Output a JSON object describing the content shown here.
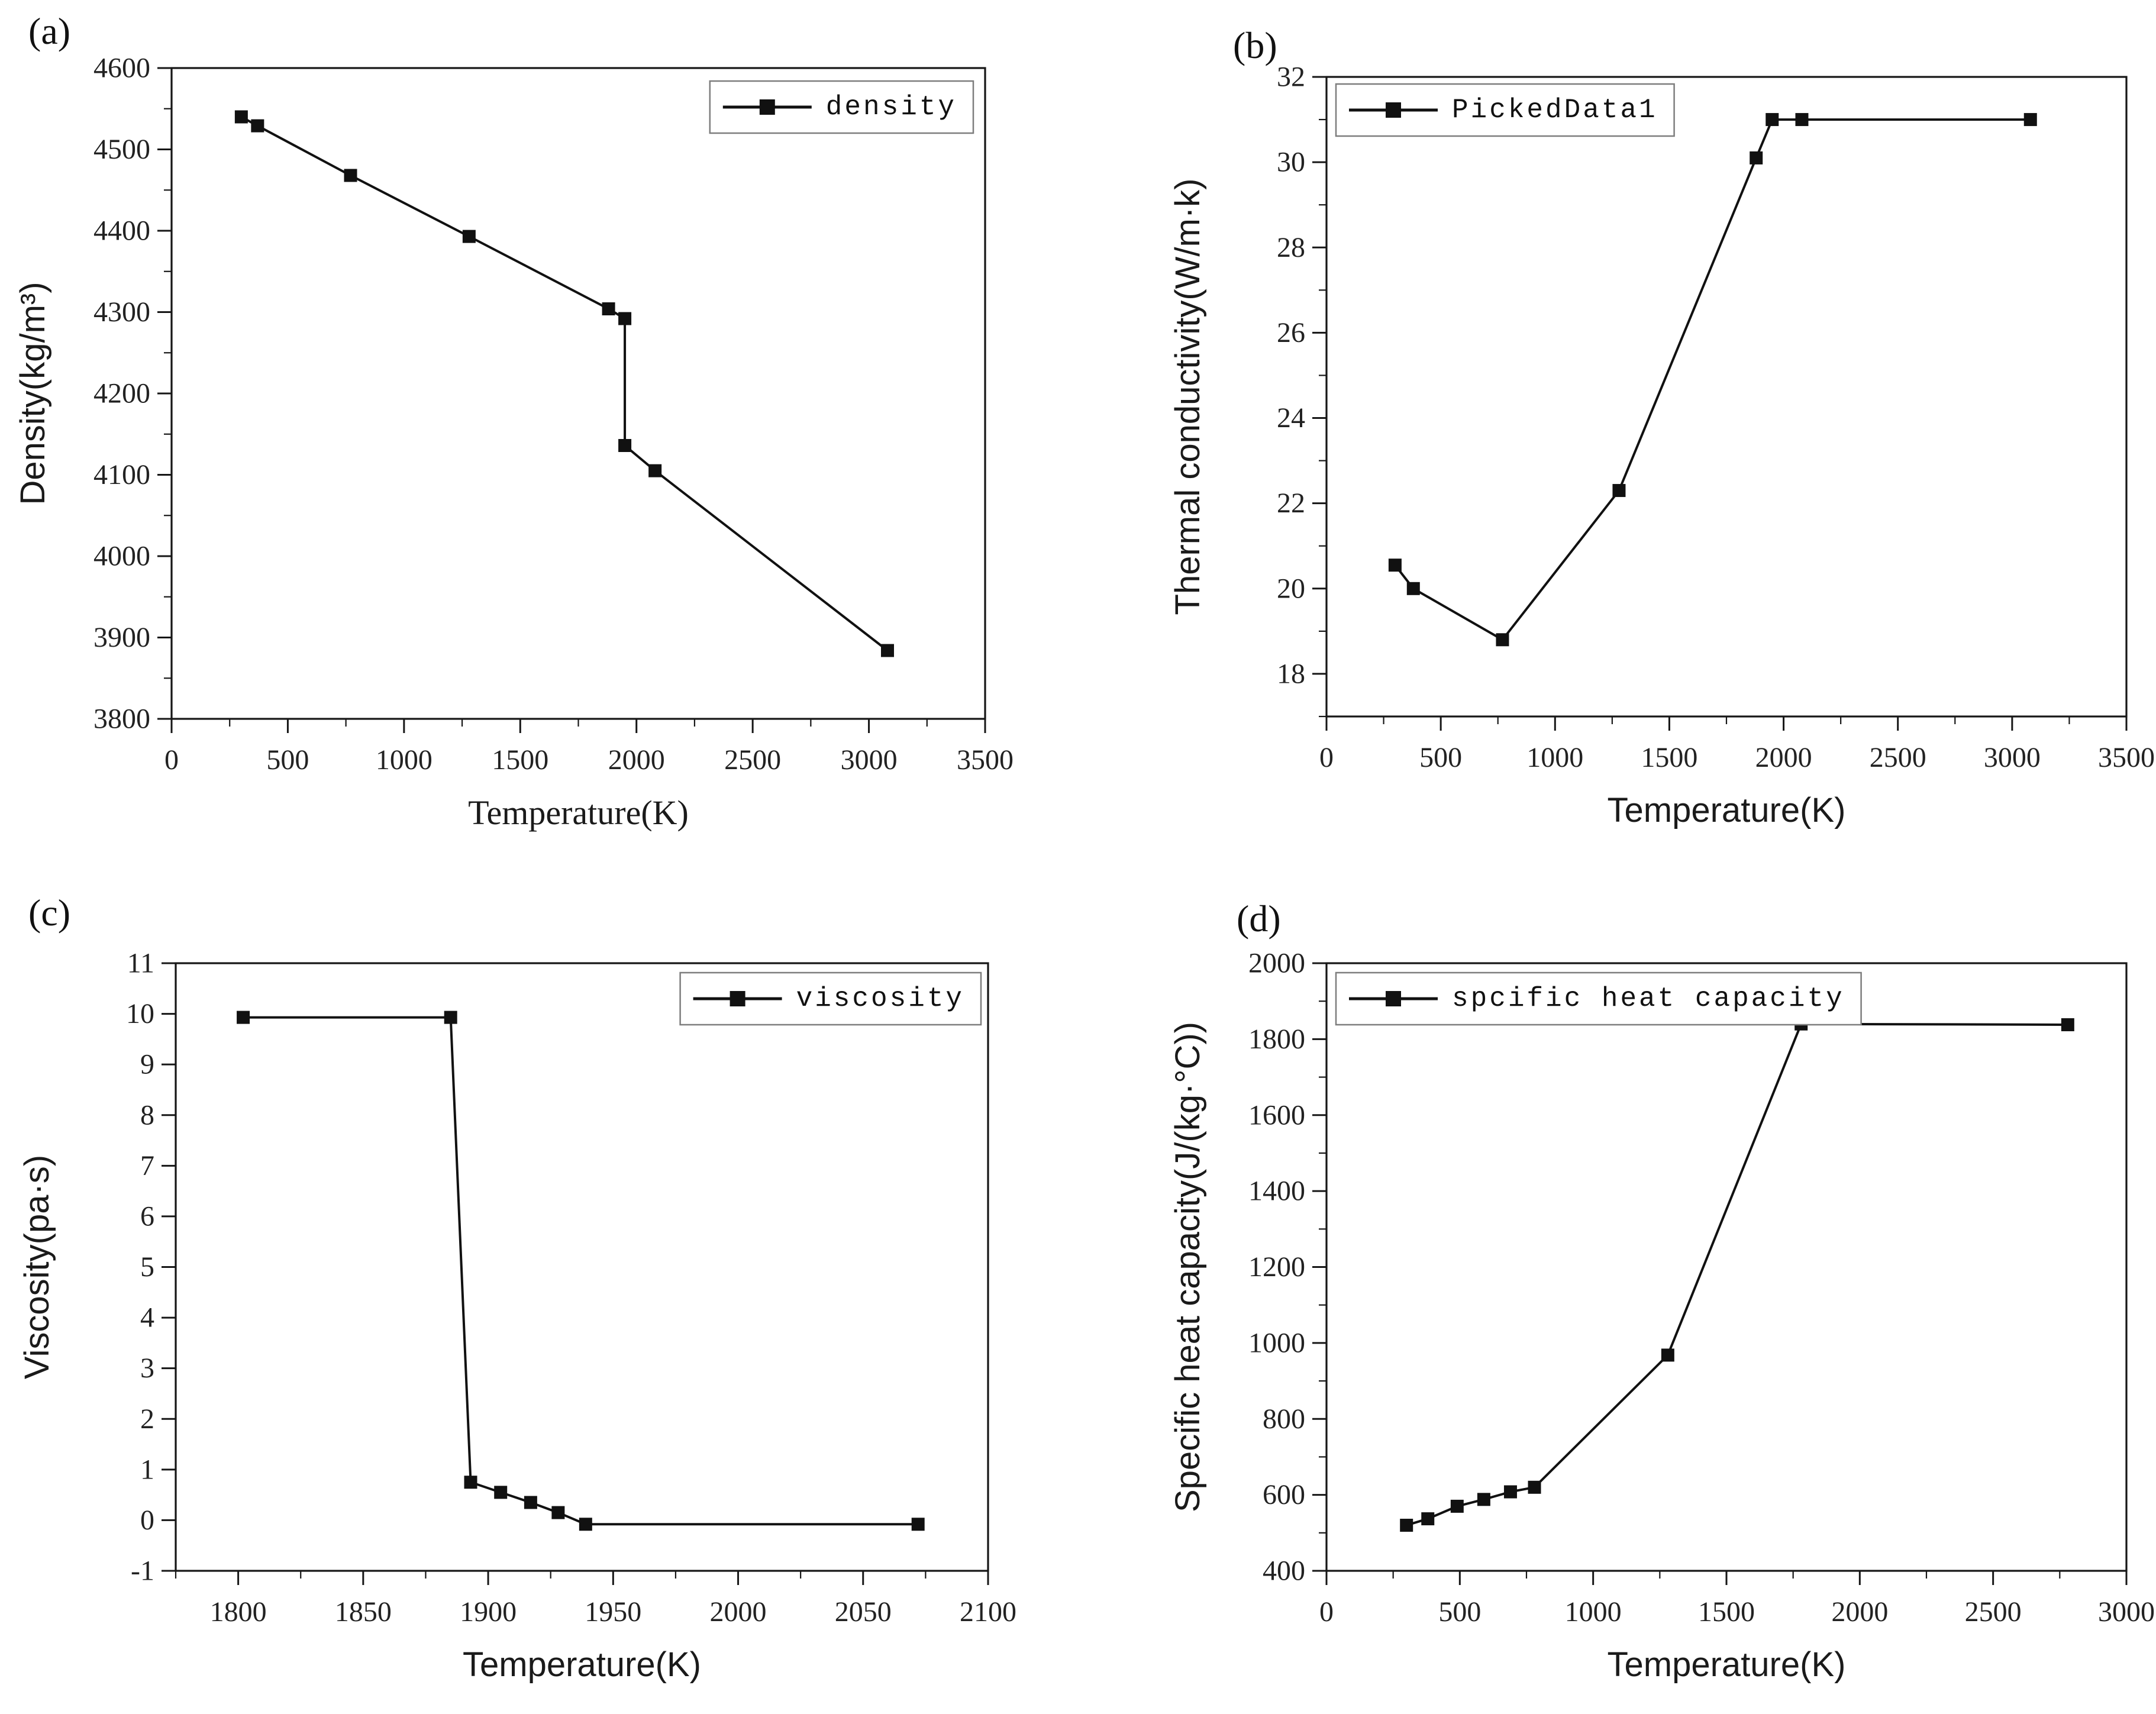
{
  "page": {
    "background": "#ffffff"
  },
  "chart_data": [
    {
      "id": "a",
      "panel_label": "(a)",
      "type": "line",
      "xlabel": "Temperature(K)",
      "ylabel": "Density(kg/m³)",
      "xlim": [
        0,
        3500
      ],
      "ylim": [
        3800,
        4600
      ],
      "xticks": {
        "start": 0,
        "end": 3500,
        "step": 500,
        "minor_step": 250
      },
      "yticks": {
        "start": 3800,
        "end": 4600,
        "step": 100,
        "minor_step": 50
      },
      "legend": {
        "label": "density",
        "position": "top-right"
      },
      "grid": false,
      "marker": "square",
      "line_color": "#111111",
      "series": [
        {
          "name": "density",
          "x": [
            300,
            370,
            770,
            1280,
            1880,
            1950,
            1950,
            2080,
            3080
          ],
          "y": [
            4540,
            4529,
            4468,
            4393,
            4304,
            4292,
            4136,
            4105,
            3884
          ]
        }
      ]
    },
    {
      "id": "b",
      "panel_label": "(b)",
      "type": "line",
      "xlabel": "Temperature(K)",
      "ylabel": "Thermal conductivity(W/m·k)",
      "xlim": [
        0,
        3500
      ],
      "ylim": [
        17,
        32
      ],
      "xticks": {
        "start": 0,
        "end": 3500,
        "step": 500,
        "minor_step": 250
      },
      "yticks": {
        "start": 18,
        "end": 32,
        "step": 2,
        "minor_step": 1
      },
      "legend": {
        "label": "PickedData1",
        "position": "top-left"
      },
      "grid": false,
      "marker": "square",
      "line_color": "#111111",
      "series": [
        {
          "name": "PickedData1",
          "x": [
            300,
            380,
            770,
            1280,
            1880,
            1950,
            2080,
            3080
          ],
          "y": [
            20.55,
            20.0,
            18.8,
            22.3,
            30.1,
            31.0,
            31.0,
            31.0
          ]
        }
      ]
    },
    {
      "id": "c",
      "panel_label": "(c)",
      "type": "line",
      "xlabel": "Temperature(K)",
      "ylabel": "Viscosity(pa·s)",
      "xlim": [
        1775,
        2100
      ],
      "ylim": [
        -1,
        11
      ],
      "xticks": {
        "start": 1800,
        "end": 2100,
        "step": 50,
        "minor_step": 25
      },
      "yticks": {
        "start": -1,
        "end": 11,
        "step": 1,
        "minor_step": null
      },
      "legend": {
        "label": "viscosity",
        "position": "top-right"
      },
      "grid": false,
      "marker": "square",
      "line_color": "#111111",
      "series": [
        {
          "name": "viscosity",
          "x": [
            1802,
            1885,
            1893,
            1905,
            1917,
            1928,
            1939,
            2072
          ],
          "y": [
            9.93,
            9.93,
            0.75,
            0.55,
            0.35,
            0.15,
            -0.08,
            -0.08
          ]
        }
      ]
    },
    {
      "id": "d",
      "panel_label": "(d)",
      "type": "line",
      "xlabel": "Temperature(K)",
      "ylabel": "Specific heat capacity(J/(kg·°C))",
      "xlim": [
        0,
        3000
      ],
      "ylim": [
        400,
        2000
      ],
      "xticks": {
        "start": 0,
        "end": 3000,
        "step": 500,
        "minor_step": 250
      },
      "yticks": {
        "start": 400,
        "end": 2000,
        "step": 200,
        "minor_step": 100
      },
      "legend": {
        "label": "spcific heat capacity",
        "position": "top-left"
      },
      "grid": false,
      "marker": "square",
      "line_color": "#111111",
      "series": [
        {
          "name": "spcific heat capacity",
          "x": [
            300,
            380,
            490,
            590,
            690,
            780,
            1280,
            1780,
            2780
          ],
          "y": [
            520,
            537,
            570,
            588,
            608,
            620,
            968,
            1840,
            1838
          ]
        }
      ]
    }
  ]
}
